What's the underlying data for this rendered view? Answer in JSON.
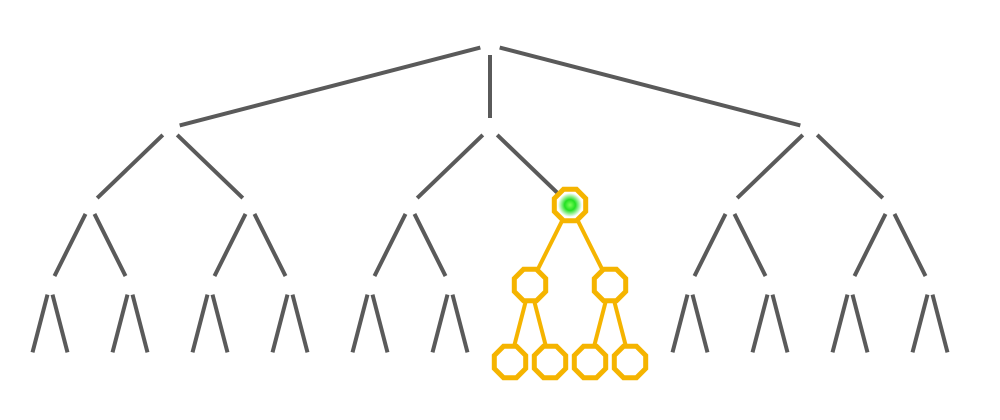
{
  "tree": {
    "type": "ternary-root-binary-tree",
    "depth": 4,
    "root_children": 3,
    "branching": 2,
    "colors": {
      "edge": "#5a5a5a",
      "highlight": "#f5b400",
      "selected": "#22e022",
      "background": "#ffffff"
    },
    "highlighted_subtree": {
      "root_path": [
        1,
        1
      ],
      "description_node_count": 7
    }
  }
}
